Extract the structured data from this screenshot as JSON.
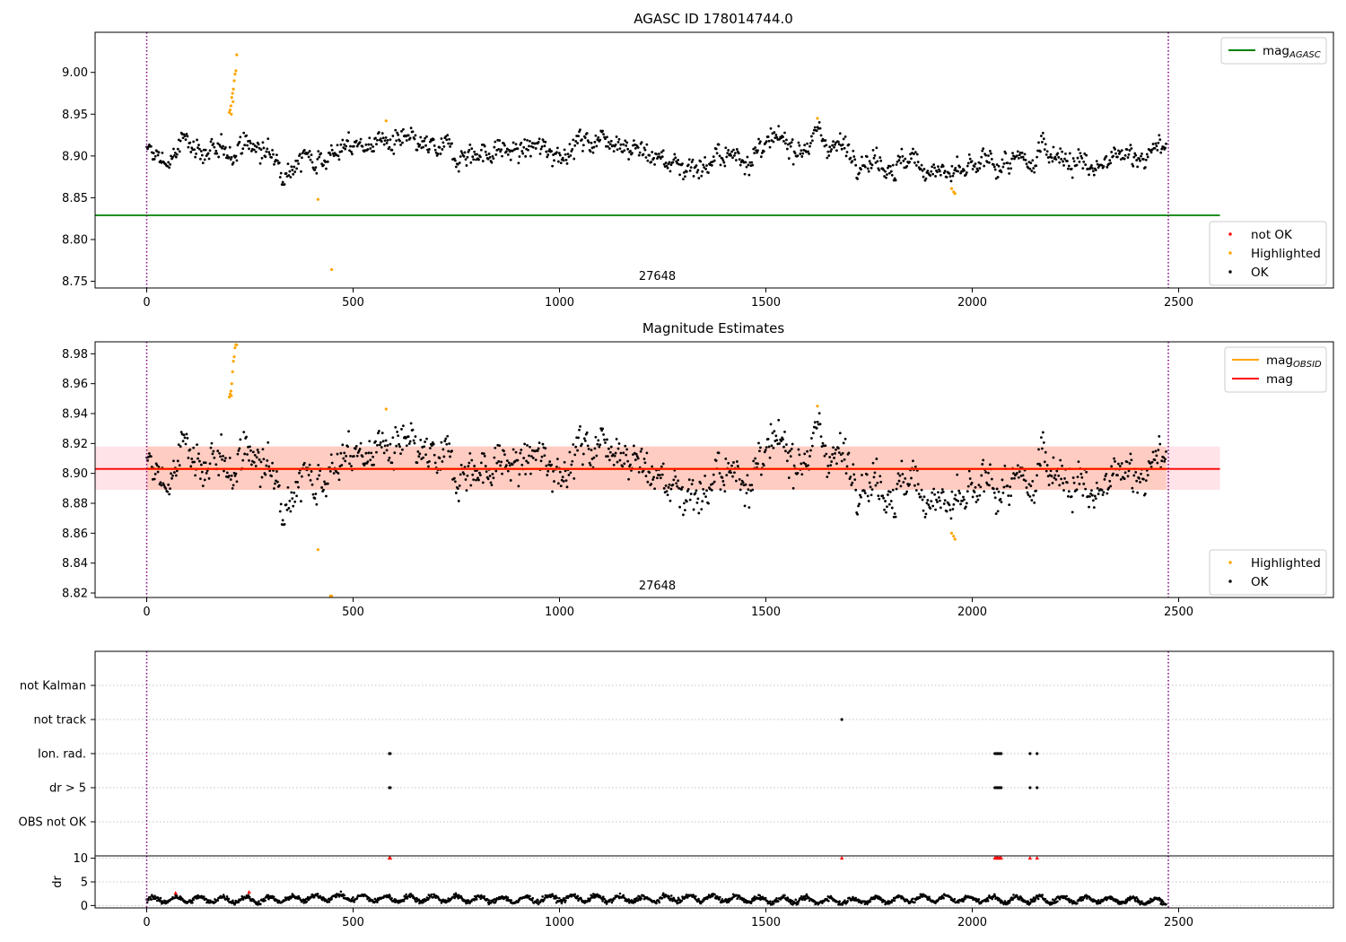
{
  "chart_data": [
    {
      "type": "scatter",
      "title": "AGASC ID 178014744.0",
      "xlim": [
        -125,
        2875
      ],
      "ylim": [
        8.742,
        9.048
      ],
      "xticks": [
        0,
        500,
        1000,
        1500,
        2000,
        2500
      ],
      "yticks": [
        8.75,
        8.8,
        8.85,
        8.9,
        8.95,
        9.0
      ],
      "ytick_labels": [
        "8.75",
        "8.80",
        "8.85",
        "8.90",
        "8.95",
        "9.00"
      ],
      "obsid_label": "27648",
      "obsid_label_x": 1237,
      "vlines_x": [
        0,
        2475
      ],
      "mag_agasc_line": {
        "y": 8.829,
        "x_range": [
          -125,
          2600
        ],
        "color": "#008000"
      },
      "legend_top": [
        {
          "label": "mag",
          "sub": "AGASC",
          "color": "#008000",
          "kind": "line"
        }
      ],
      "legend_bottom": [
        {
          "label": "not OK",
          "color": "#ff0000",
          "kind": "dot"
        },
        {
          "label": "Highlighted",
          "color": "#ffa500",
          "kind": "dot"
        },
        {
          "label": "OK",
          "color": "#000000",
          "kind": "dot"
        }
      ],
      "ok_series": {
        "x_range": [
          0,
          2470
        ],
        "anchors": [
          [
            0,
            8.903
          ],
          [
            60,
            8.893
          ],
          [
            100,
            8.922
          ],
          [
            170,
            8.895
          ],
          [
            230,
            8.918
          ],
          [
            330,
            8.892
          ],
          [
            460,
            8.906
          ],
          [
            560,
            8.918
          ],
          [
            700,
            8.904
          ],
          [
            900,
            8.906
          ],
          [
            1000,
            8.908
          ],
          [
            1130,
            8.927
          ],
          [
            1200,
            8.905
          ],
          [
            1300,
            8.888
          ],
          [
            1400,
            8.896
          ],
          [
            1500,
            8.908
          ],
          [
            1630,
            8.922
          ],
          [
            1700,
            8.908
          ],
          [
            1800,
            8.893
          ],
          [
            1900,
            8.888
          ],
          [
            1960,
            8.872
          ],
          [
            2050,
            8.892
          ],
          [
            2150,
            8.886
          ],
          [
            2170,
            8.918
          ],
          [
            2250,
            8.893
          ],
          [
            2300,
            8.882
          ],
          [
            2400,
            8.906
          ],
          [
            2470,
            8.903
          ]
        ],
        "scatter": 0.009,
        "step": 2.1,
        "color": "#000000"
      },
      "highlighted_points": [
        [
          200,
          8.952
        ],
        [
          202,
          8.955
        ],
        [
          204,
          8.96
        ],
        [
          206,
          8.97
        ],
        [
          208,
          8.975
        ],
        [
          210,
          8.98
        ],
        [
          212,
          8.99
        ],
        [
          214,
          8.998
        ],
        [
          216,
          9.002
        ],
        [
          218,
          9.021
        ],
        [
          205,
          8.95
        ],
        [
          209,
          8.965
        ],
        [
          415,
          8.848
        ],
        [
          448,
          8.764
        ],
        [
          580,
          8.942
        ],
        [
          1625,
          8.945
        ],
        [
          1950,
          8.861
        ],
        [
          1955,
          8.857
        ],
        [
          1958,
          8.855
        ]
      ],
      "highlighted_color": "#ffa500"
    },
    {
      "type": "scatter",
      "title": "Magnitude Estimates",
      "xlim": [
        -125,
        2875
      ],
      "ylim": [
        8.817,
        8.988
      ],
      "xticks": [
        0,
        500,
        1000,
        1500,
        2000,
        2500
      ],
      "yticks": [
        8.82,
        8.84,
        8.86,
        8.88,
        8.9,
        8.92,
        8.94,
        8.96,
        8.98
      ],
      "ytick_labels": [
        "8.82",
        "8.84",
        "8.86",
        "8.88",
        "8.90",
        "8.92",
        "8.94",
        "8.96",
        "8.98"
      ],
      "obsid_label": "27648",
      "obsid_label_x": 1237,
      "vlines_x": [
        0,
        2475
      ],
      "mag_line": {
        "y": 8.903,
        "x_range": [
          -125,
          2600
        ],
        "color": "#ff0000"
      },
      "mag_obsid_line": {
        "y": 8.903,
        "x_range": [
          0,
          2470
        ],
        "color": "#ffa500"
      },
      "band_pink": {
        "y": [
          8.889,
          8.918
        ],
        "x_range": [
          -125,
          2600
        ],
        "color": "#ffc0cb"
      },
      "band_orange": {
        "y": [
          8.889,
          8.918
        ],
        "x_range": [
          0,
          2470
        ],
        "color": "#ffa07a"
      },
      "legend_top": [
        {
          "label": "mag",
          "sub": "OBSID",
          "color": "#ffa500",
          "kind": "line"
        },
        {
          "label": "mag",
          "sub": "",
          "color": "#ff0000",
          "kind": "line"
        }
      ],
      "legend_bottom": [
        {
          "label": "Highlighted",
          "color": "#ffa500",
          "kind": "dot"
        },
        {
          "label": "OK",
          "color": "#000000",
          "kind": "dot"
        }
      ],
      "highlighted_points": [
        [
          200,
          8.951
        ],
        [
          202,
          8.953
        ],
        [
          204,
          8.955
        ],
        [
          206,
          8.96
        ],
        [
          208,
          8.968
        ],
        [
          210,
          8.975
        ],
        [
          212,
          8.978
        ],
        [
          214,
          8.984
        ],
        [
          216,
          8.986
        ],
        [
          218,
          8.986
        ],
        [
          205,
          8.952
        ],
        [
          415,
          8.849
        ],
        [
          445,
          8.818
        ],
        [
          448,
          8.818
        ],
        [
          580,
          8.943
        ],
        [
          1625,
          8.945
        ],
        [
          1950,
          8.86
        ],
        [
          1955,
          8.858
        ],
        [
          1958,
          8.856
        ]
      ],
      "highlighted_color": "#ffa500"
    },
    {
      "type": "scatter",
      "title": "",
      "xlim": [
        -125,
        2875
      ],
      "xticks": [
        0,
        500,
        1000,
        1500,
        2000,
        2500
      ],
      "vlines_x": [
        0,
        2475
      ],
      "flag_categories": [
        "not Kalman",
        "not track",
        "Ion. rad.",
        "dr > 5",
        "OBS not OK"
      ],
      "flag_points": [
        {
          "category": "not track",
          "x": [
            1684
          ]
        },
        {
          "category": "Ion. rad.",
          "x": [
            588,
            590,
            2055,
            2058,
            2061,
            2064,
            2067,
            2070,
            2140,
            2157
          ]
        },
        {
          "category": "dr > 5",
          "x": [
            588,
            590,
            2055,
            2058,
            2061,
            2064,
            2067,
            2070,
            2140,
            2157
          ]
        }
      ],
      "dr": {
        "ylabel": "dr",
        "ylim": [
          -0.5,
          10.5
        ],
        "yticks": [
          0,
          5,
          10
        ],
        "ytick_labels": [
          "0",
          "5",
          "10"
        ],
        "trend": [
          [
            0,
            1.2
          ],
          [
            100,
            1.3
          ],
          [
            300,
            1.2
          ],
          [
            450,
            1.8
          ],
          [
            580,
            1.4
          ],
          [
            700,
            1.5
          ],
          [
            900,
            1.2
          ],
          [
            1000,
            1.6
          ],
          [
            1200,
            1.3
          ],
          [
            1350,
            1.6
          ],
          [
            1500,
            1.2
          ],
          [
            1700,
            1.0
          ],
          [
            1900,
            1.5
          ],
          [
            2100,
            1.2
          ],
          [
            2300,
            1.3
          ],
          [
            2470,
            0.8
          ]
        ],
        "capped_points": [
          588,
          590,
          1684,
          2055,
          2058,
          2061,
          2064,
          2067,
          2070,
          2140,
          2157
        ],
        "capped_value": 10,
        "red_points": [
          [
            70,
            2.6
          ],
          [
            248,
            2.8
          ]
        ],
        "capped_color": "#ff0000"
      }
    }
  ]
}
